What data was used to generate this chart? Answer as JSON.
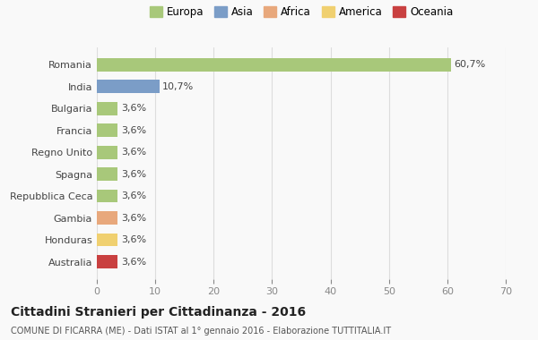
{
  "countries": [
    "Romania",
    "India",
    "Bulgaria",
    "Francia",
    "Regno Unito",
    "Spagna",
    "Repubblica Ceca",
    "Gambia",
    "Honduras",
    "Australia"
  ],
  "values": [
    60.7,
    10.7,
    3.6,
    3.6,
    3.6,
    3.6,
    3.6,
    3.6,
    3.6,
    3.6
  ],
  "labels": [
    "60,7%",
    "10,7%",
    "3,6%",
    "3,6%",
    "3,6%",
    "3,6%",
    "3,6%",
    "3,6%",
    "3,6%",
    "3,6%"
  ],
  "colors": [
    "#a8c87a",
    "#7b9dc7",
    "#a8c87a",
    "#a8c87a",
    "#a8c87a",
    "#a8c87a",
    "#a8c87a",
    "#e8a87c",
    "#f0d070",
    "#c94040"
  ],
  "legend_labels": [
    "Europa",
    "Asia",
    "Africa",
    "America",
    "Oceania"
  ],
  "legend_colors": [
    "#a8c87a",
    "#7b9dc7",
    "#e8a87c",
    "#f0d070",
    "#c94040"
  ],
  "title": "Cittadini Stranieri per Cittadinanza - 2016",
  "subtitle": "COMUNE DI FICARRA (ME) - Dati ISTAT al 1° gennaio 2016 - Elaborazione TUTTITALIA.IT",
  "xlim": [
    0,
    70
  ],
  "xticks": [
    0,
    10,
    20,
    30,
    40,
    50,
    60,
    70
  ],
  "background_color": "#f9f9f9",
  "grid_color": "#dddddd"
}
